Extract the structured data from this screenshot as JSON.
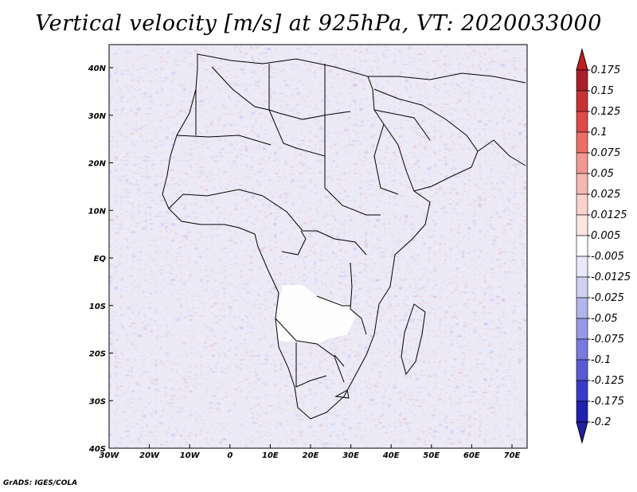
{
  "title": "Vertical velocity [m/s] at 925hPa, VT: 2020033000",
  "credit": "GrADS: IGES/COLA",
  "map": {
    "lon_range": [
      -30,
      75
    ],
    "lat_range": [
      -40,
      45
    ],
    "lon_ticks": [
      "30W",
      "20W",
      "10W",
      "0",
      "10E",
      "20E",
      "30E",
      "40E",
      "50E",
      "60E",
      "70E"
    ],
    "lat_ticks": [
      "40N",
      "30N",
      "20N",
      "10N",
      "EQ",
      "10S",
      "20S",
      "30S",
      "40S"
    ]
  },
  "colorbar": {
    "labels": [
      "0.175",
      "0.15",
      "0.125",
      "0.1",
      "0.075",
      "0.05",
      "0.025",
      "0.0125",
      "0.005",
      "-0.005",
      "-0.0125",
      "-0.025",
      "-0.05",
      "-0.075",
      "-0.1",
      "-0.125",
      "-0.175",
      "-0.2"
    ],
    "colors": [
      "#a8202a",
      "#c83234",
      "#de4a48",
      "#ec6e66",
      "#f29890",
      "#f6b8b0",
      "#f9d2cc",
      "#fce6e2",
      "#ffffff",
      "#ffffff",
      "#e8e8f8",
      "#d0d0f2",
      "#b4b4ec",
      "#9898e6",
      "#7a7ade",
      "#5a5ad6",
      "#3a3ac8",
      "#2020b0"
    ],
    "top_arrow_color": "#c02020",
    "bottom_arrow_color": "#2020a0"
  }
}
